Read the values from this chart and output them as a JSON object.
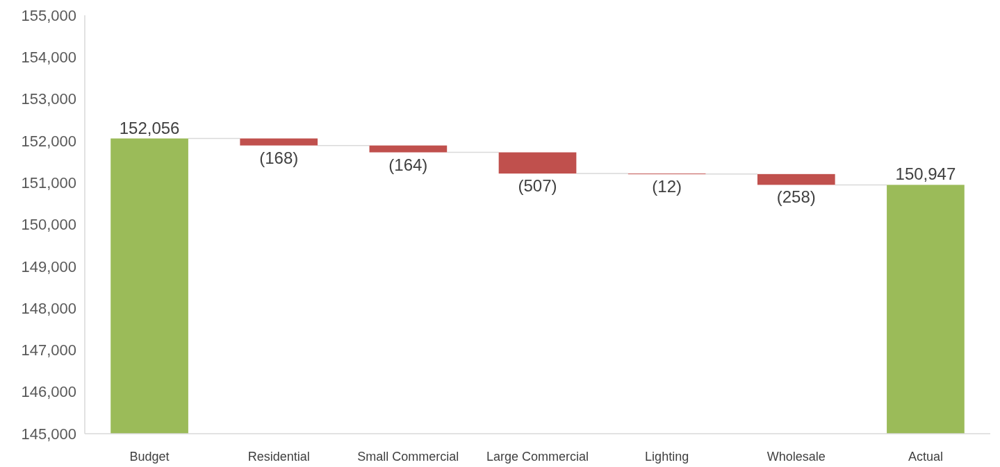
{
  "chart_data": {
    "type": "bar",
    "categories": [
      "Budget",
      "Residential",
      "Small Commercial",
      "Large Commercial",
      "Lighting",
      "Wholesale",
      "Actual"
    ],
    "values": [
      152056,
      -168,
      -164,
      -507,
      -12,
      -258,
      150947
    ],
    "base": [
      null,
      152056,
      151888,
      151724,
      151217,
      151205,
      null
    ],
    "colors": [
      "#9bbb59",
      "#c0504d",
      "#c0504d",
      "#c0504d",
      "#c0504d",
      "#c0504d",
      "#9bbb59"
    ],
    "value_labels": [
      "152,056",
      "(168)",
      "(164)",
      "(507)",
      "(12)",
      "(258)",
      "150,947"
    ],
    "ylim": [
      145000,
      155000
    ],
    "yticks": [
      {
        "value": 145000,
        "label": "145,000"
      },
      {
        "value": 146000,
        "label": "146,000"
      },
      {
        "value": 147000,
        "label": "147,000"
      },
      {
        "value": 148000,
        "label": "148,000"
      },
      {
        "value": 149000,
        "label": "149,000"
      },
      {
        "value": 150000,
        "label": "150,000"
      },
      {
        "value": 151000,
        "label": "151,000"
      },
      {
        "value": 152000,
        "label": "152,000"
      },
      {
        "value": 153000,
        "label": "153,000"
      },
      {
        "value": 154000,
        "label": "154,000"
      },
      {
        "value": 155000,
        "label": "155,000"
      }
    ],
    "grid": false
  }
}
